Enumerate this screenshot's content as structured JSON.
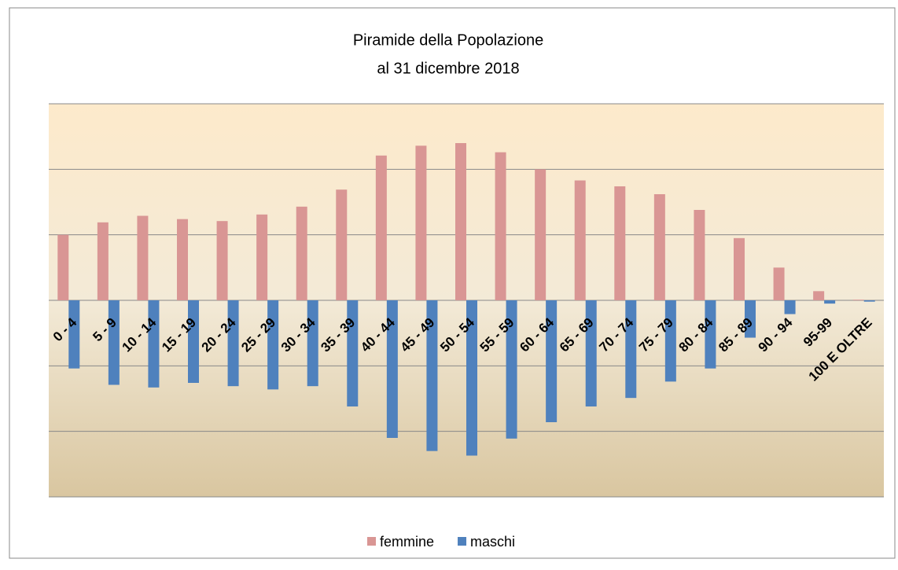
{
  "chart_data": {
    "type": "bar",
    "title": "Piramide della Popolazione",
    "subtitle": "al 31 dicembre 2018",
    "categories": [
      "0 - 4",
      "5 - 9",
      "10 - 14",
      "15 - 19",
      "20 - 24",
      "25 - 29",
      "30 - 34",
      "35 - 39",
      "40 - 44",
      "45 - 49",
      "50 - 54",
      "55 - 59",
      "60 - 64",
      "65 - 69",
      "70 - 74",
      "75 - 79",
      "80 - 84",
      "85 - 89",
      "90 - 94",
      "95-99",
      "100 E OLTRE"
    ],
    "series": [
      {
        "name": "femmine",
        "color": "#d99694",
        "values": [
          1.0,
          1.19,
          1.29,
          1.24,
          1.21,
          1.31,
          1.43,
          1.69,
          2.21,
          2.36,
          2.4,
          2.26,
          2.0,
          1.83,
          1.74,
          1.62,
          1.38,
          0.95,
          0.5,
          0.14,
          0.01
        ]
      },
      {
        "name": "maschi",
        "color": "#4f81bd",
        "values": [
          -1.04,
          -1.29,
          -1.33,
          -1.26,
          -1.31,
          -1.36,
          -1.31,
          -1.62,
          -2.1,
          -2.3,
          -2.37,
          -2.11,
          -1.86,
          -1.62,
          -1.49,
          -1.24,
          -1.04,
          -0.57,
          -0.21,
          -0.05,
          -0.02
        ]
      }
    ],
    "ylim": [
      -3,
      3
    ],
    "yticks": [
      -3,
      -2,
      -1,
      0,
      1,
      2,
      3
    ],
    "grid": true,
    "legend": "bottom"
  }
}
